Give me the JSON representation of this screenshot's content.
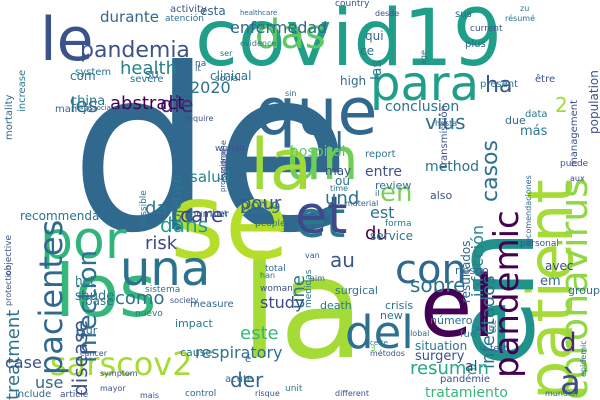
{
  "words": [
    {
      "text": "de",
      "color": "#31688e"
    },
    {
      "text": "la",
      "color": "#a5db36"
    },
    {
      "text": "covid19",
      "color": "#1f9e89"
    },
    {
      "text": "patient",
      "color": "#a5db36"
    },
    {
      "text": "en",
      "color": "#21918c"
    },
    {
      "text": "el",
      "color": "#440154"
    },
    {
      "text": "que",
      "color": "#31688e"
    },
    {
      "text": "se",
      "color": "#b5de2b"
    },
    {
      "text": "los",
      "color": "#35b779"
    },
    {
      "text": "para",
      "color": "#1f9e89"
    },
    {
      "text": "un",
      "color": "#6ece58"
    },
    {
      "text": "et",
      "color": "#2a788e"
    },
    {
      "text": "le",
      "color": "#3b528b"
    },
    {
      "text": "del",
      "color": "#2c728e"
    },
    {
      "text": "por",
      "color": "#2fb47c"
    },
    {
      "text": "una",
      "color": "#2c728e"
    },
    {
      "text": "coronavirus",
      "color": "#8fd744"
    },
    {
      "text": "pandemic",
      "color": "#440154"
    },
    {
      "text": "con",
      "color": "#31688e"
    },
    {
      "text": "sarscov2",
      "color": "#a5db36"
    },
    {
      "text": "pacientes",
      "color": "#31688e"
    },
    {
      "text": "infection",
      "color": "#2c728e"
    },
    {
      "text": "pandemia",
      "color": "#3b528b"
    },
    {
      "text": "casos",
      "color": "#2c728e"
    },
    {
      "text": "la",
      "color": "#a0da39"
    },
    {
      "text": "à",
      "color": "#3e4989"
    },
    {
      "text": "d",
      "color": "#482878"
    },
    {
      "text": "et",
      "color": "#3e4989"
    },
    {
      "text": "und",
      "color": "#2c728e"
    },
    {
      "text": "ha",
      "color": "#3b528b"
    },
    {
      "text": "infectados",
      "color": "#2c728e"
    },
    {
      "text": "infección",
      "color": "#27808e"
    },
    {
      "text": "l",
      "color": "#31688e"
    },
    {
      "text": "das",
      "color": "#5ec962"
    },
    {
      "text": "health",
      "color": "#26828e"
    },
    {
      "text": "enfermedad",
      "color": "#31688e"
    },
    {
      "text": "durante",
      "color": "#31688e"
    },
    {
      "text": "esta",
      "color": "#31688e"
    },
    {
      "text": "en",
      "color": "#7ad151"
    },
    {
      "text": "die",
      "color": "#482878"
    },
    {
      "text": "les",
      "color": "#2a788e"
    },
    {
      "text": "abstract",
      "color": "#440154"
    },
    {
      "text": "2020",
      "color": "#2c728e"
    },
    {
      "text": "vius",
      "color": "#2c728e"
    },
    {
      "text": "salud",
      "color": "#25848e"
    },
    {
      "text": "objetivo",
      "color": "#2a788e"
    },
    {
      "text": "hospital",
      "color": "#5ec962"
    },
    {
      "text": "care",
      "color": "#433e85"
    },
    {
      "text": "pour",
      "color": "#3b528b"
    },
    {
      "text": "dans",
      "color": "#1f9e89"
    },
    {
      "text": "da",
      "color": "#2a788e"
    },
    {
      "text": "2019",
      "color": "#2c728e"
    },
    {
      "text": "risk",
      "color": "#404688"
    },
    {
      "text": "como",
      "color": "#2c728e"
    },
    {
      "text": "disease",
      "color": "#3b528b"
    },
    {
      "text": "treatment",
      "color": "#2c728e"
    },
    {
      "text": "este",
      "color": "#35b779"
    },
    {
      "text": "respiratory",
      "color": "#2c728e"
    },
    {
      "text": "der",
      "color": "#31688e"
    },
    {
      "text": "une",
      "color": "#2a788e"
    },
    {
      "text": "sobre",
      "color": "#2c728e"
    },
    {
      "text": "resumen",
      "color": "#22a884"
    },
    {
      "text": "al",
      "color": "#414487"
    },
    {
      "text": "du",
      "color": "#440154"
    },
    {
      "text": "est",
      "color": "#2c728e"
    },
    {
      "text": "entre",
      "color": "#3b528b"
    },
    {
      "text": "au",
      "color": "#39568c"
    },
    {
      "text": "study",
      "color": "#3e4989"
    },
    {
      "text": "case",
      "color": "#3b528b"
    },
    {
      "text": "use",
      "color": "#31688e"
    },
    {
      "text": "conclusion",
      "color": "#2c728e"
    },
    {
      "text": "más",
      "color": "#2a788e"
    },
    {
      "text": "method",
      "color": "#2c728e"
    },
    {
      "text": "high",
      "color": "#31688e"
    },
    {
      "text": "clinical",
      "color": "#2a788e"
    },
    {
      "text": "china",
      "color": "#2a788e"
    },
    {
      "text": "saúde",
      "color": "#2a788e"
    },
    {
      "text": "recommendation",
      "color": "#2c728e"
    },
    {
      "text": "ou",
      "color": "#2c728e"
    },
    {
      "text": "may",
      "color": "#3b528b"
    },
    {
      "text": "report",
      "color": "#2a788e"
    },
    {
      "text": "also",
      "color": "#3b528b"
    },
    {
      "text": "review",
      "color": "#2c728e"
    },
    {
      "text": "impact",
      "color": "#2a788e"
    },
    {
      "text": "cause",
      "color": "#2a788e"
    },
    {
      "text": "measure",
      "color": "#31688e"
    },
    {
      "text": "number",
      "color": "#31688e"
    },
    {
      "text": "acute",
      "color": "#31688e"
    },
    {
      "text": "tratamiento",
      "color": "#35b779"
    },
    {
      "text": "surgery",
      "color": "#3b528b"
    },
    {
      "text": "situation",
      "color": "#2a788e"
    },
    {
      "text": "crisis",
      "color": "#2c728e"
    },
    {
      "text": "service",
      "color": "#2a788e"
    },
    {
      "text": "avec",
      "color": "#3e4989"
    },
    {
      "text": "riesgo",
      "color": "#31688e"
    },
    {
      "text": "group",
      "color": "#2c728e"
    },
    {
      "text": "em",
      "color": "#31688e"
    },
    {
      "text": "new",
      "color": "#2c728e"
    },
    {
      "text": "death",
      "color": "#2a788e"
    },
    {
      "text": "resultados",
      "color": "#31688e"
    },
    {
      "text": "possible",
      "color": "#2a788e"
    },
    {
      "text": "syndrome",
      "color": "#3b528b"
    },
    {
      "text": "transmission",
      "color": "#3b528b"
    },
    {
      "text": "population",
      "color": "#3b528b"
    },
    {
      "text": "management",
      "color": "#3b528b"
    },
    {
      "text": "être",
      "color": "#3b528b"
    },
    {
      "text": "due",
      "color": "#31688e"
    },
    {
      "text": "data",
      "color": "#2a788e"
    },
    {
      "text": "2",
      "color": "#a0da39"
    },
    {
      "text": "puede",
      "color": "#3b528b"
    },
    {
      "text": "aux",
      "color": "#3e4989"
    },
    {
      "text": "wuhan",
      "color": "#3b528b"
    },
    {
      "text": "social",
      "color": "#31688e"
    },
    {
      "text": "severe",
      "color": "#2c728e"
    },
    {
      "text": "system",
      "color": "#2c728e"
    },
    {
      "text": "mortality",
      "color": "#31688e"
    },
    {
      "text": "objective",
      "color": "#3b528b"
    },
    {
      "text": "increase",
      "color": "#2a788e"
    },
    {
      "text": "manejo",
      "color": "#31688e"
    },
    {
      "text": "com",
      "color": "#2c728e"
    },
    {
      "text": "su",
      "color": "#31688e"
    },
    {
      "text": "na",
      "color": "#3b528b"
    },
    {
      "text": "het",
      "color": "#2a788e"
    },
    {
      "text": "base",
      "color": "#2c728e"
    },
    {
      "text": "sur",
      "color": "#31688e"
    },
    {
      "text": "include",
      "color": "#31688e"
    },
    {
      "text": "article",
      "color": "#3b528b"
    },
    {
      "text": "mais",
      "color": "#3b528b"
    },
    {
      "text": "control",
      "color": "#31688e"
    },
    {
      "text": "risque",
      "color": "#3b528b"
    },
    {
      "text": "unit",
      "color": "#2a788e"
    },
    {
      "text": "different",
      "color": "#3b528b"
    },
    {
      "text": "pandémie",
      "color": "#3b528b"
    },
    {
      "text": "mundial",
      "color": "#31688e"
    },
    {
      "text": "sistema",
      "color": "#2c728e"
    },
    {
      "text": "society",
      "color": "#3b528b"
    },
    {
      "text": "nuevo",
      "color": "#2a788e"
    },
    {
      "text": "protection",
      "color": "#3b528b"
    },
    {
      "text": "symptom",
      "color": "#3b528b"
    },
    {
      "text": "cancer",
      "color": "#3b528b"
    },
    {
      "text": "medidas",
      "color": "#2a788e"
    },
    {
      "text": "total",
      "color": "#31688e"
    },
    {
      "text": "han",
      "color": "#2a788e"
    },
    {
      "text": "aim",
      "color": "#3b528b"
    },
    {
      "text": "van",
      "color": "#31688e"
    },
    {
      "text": "people",
      "color": "#2c728e"
    },
    {
      "text": "sont",
      "color": "#3b528b"
    },
    {
      "text": "material",
      "color": "#31688e"
    },
    {
      "text": "time",
      "color": "#2c728e"
    },
    {
      "text": "professional",
      "color": "#3b528b"
    },
    {
      "text": "evidence",
      "color": "#2a788e"
    },
    {
      "text": "ser",
      "color": "#31688e"
    },
    {
      "text": "activity",
      "color": "#3b528b"
    },
    {
      "text": "atención",
      "color": "#2c728e"
    },
    {
      "text": "healthcare",
      "color": "#31688e"
    },
    {
      "text": "desde",
      "color": "#3b528b"
    },
    {
      "text": "sus",
      "color": "#31688e"
    },
    {
      "text": "résumé",
      "color": "#2c728e"
    },
    {
      "text": "current",
      "color": "#3b528b"
    },
    {
      "text": "zu",
      "color": "#2a788e"
    },
    {
      "text": "country",
      "color": "#3b528b"
    },
    {
      "text": "qui",
      "color": "#31688e"
    },
    {
      "text": "ce",
      "color": "#2c728e"
    },
    {
      "text": "las",
      "color": "#2a788e"
    },
    {
      "text": "plus",
      "color": "#31688e"
    },
    {
      "text": "age",
      "color": "#2c728e"
    },
    {
      "text": "present",
      "color": "#2a788e"
    },
    {
      "text": "sin",
      "color": "#31688e"
    },
    {
      "text": "associate",
      "color": "#3b528b"
    },
    {
      "text": "require",
      "color": "#3b528b"
    },
    {
      "text": "hasta",
      "color": "#31688e"
    },
    {
      "text": "número",
      "color": "#2c728e"
    },
    {
      "text": "fue",
      "color": "#2a788e"
    },
    {
      "text": "well",
      "color": "#2c728e"
    },
    {
      "text": "test",
      "color": "#3b528b"
    },
    {
      "text": "global",
      "color": "#31688e"
    },
    {
      "text": "cette",
      "color": "#2a788e"
    },
    {
      "text": "métodos",
      "color": "#3b528b"
    },
    {
      "text": "été",
      "color": "#31688e"
    },
    {
      "text": "epidemic",
      "color": "#2c728e"
    },
    {
      "text": "personal",
      "color": "#3b528b"
    },
    {
      "text": "recomendaciones",
      "color": "#31688e"
    },
    {
      "text": "surgical",
      "color": "#2c728e"
    },
    {
      "text": "forma",
      "color": "#2a788e"
    },
    {
      "text": "il",
      "color": "#31688e"
    },
    {
      "text": "mayor",
      "color": "#3b528b"
    },
    {
      "text": "woman",
      "color": "#3b528b"
    },
    {
      "text": "3",
      "color": "#5ec962"
    },
    {
      "text": "é",
      "color": "#31688e"
    },
    {
      "text": "it",
      "color": "#31688e"
    },
    {
      "text": "no",
      "color": "#2c728e"
    }
  ]
}
